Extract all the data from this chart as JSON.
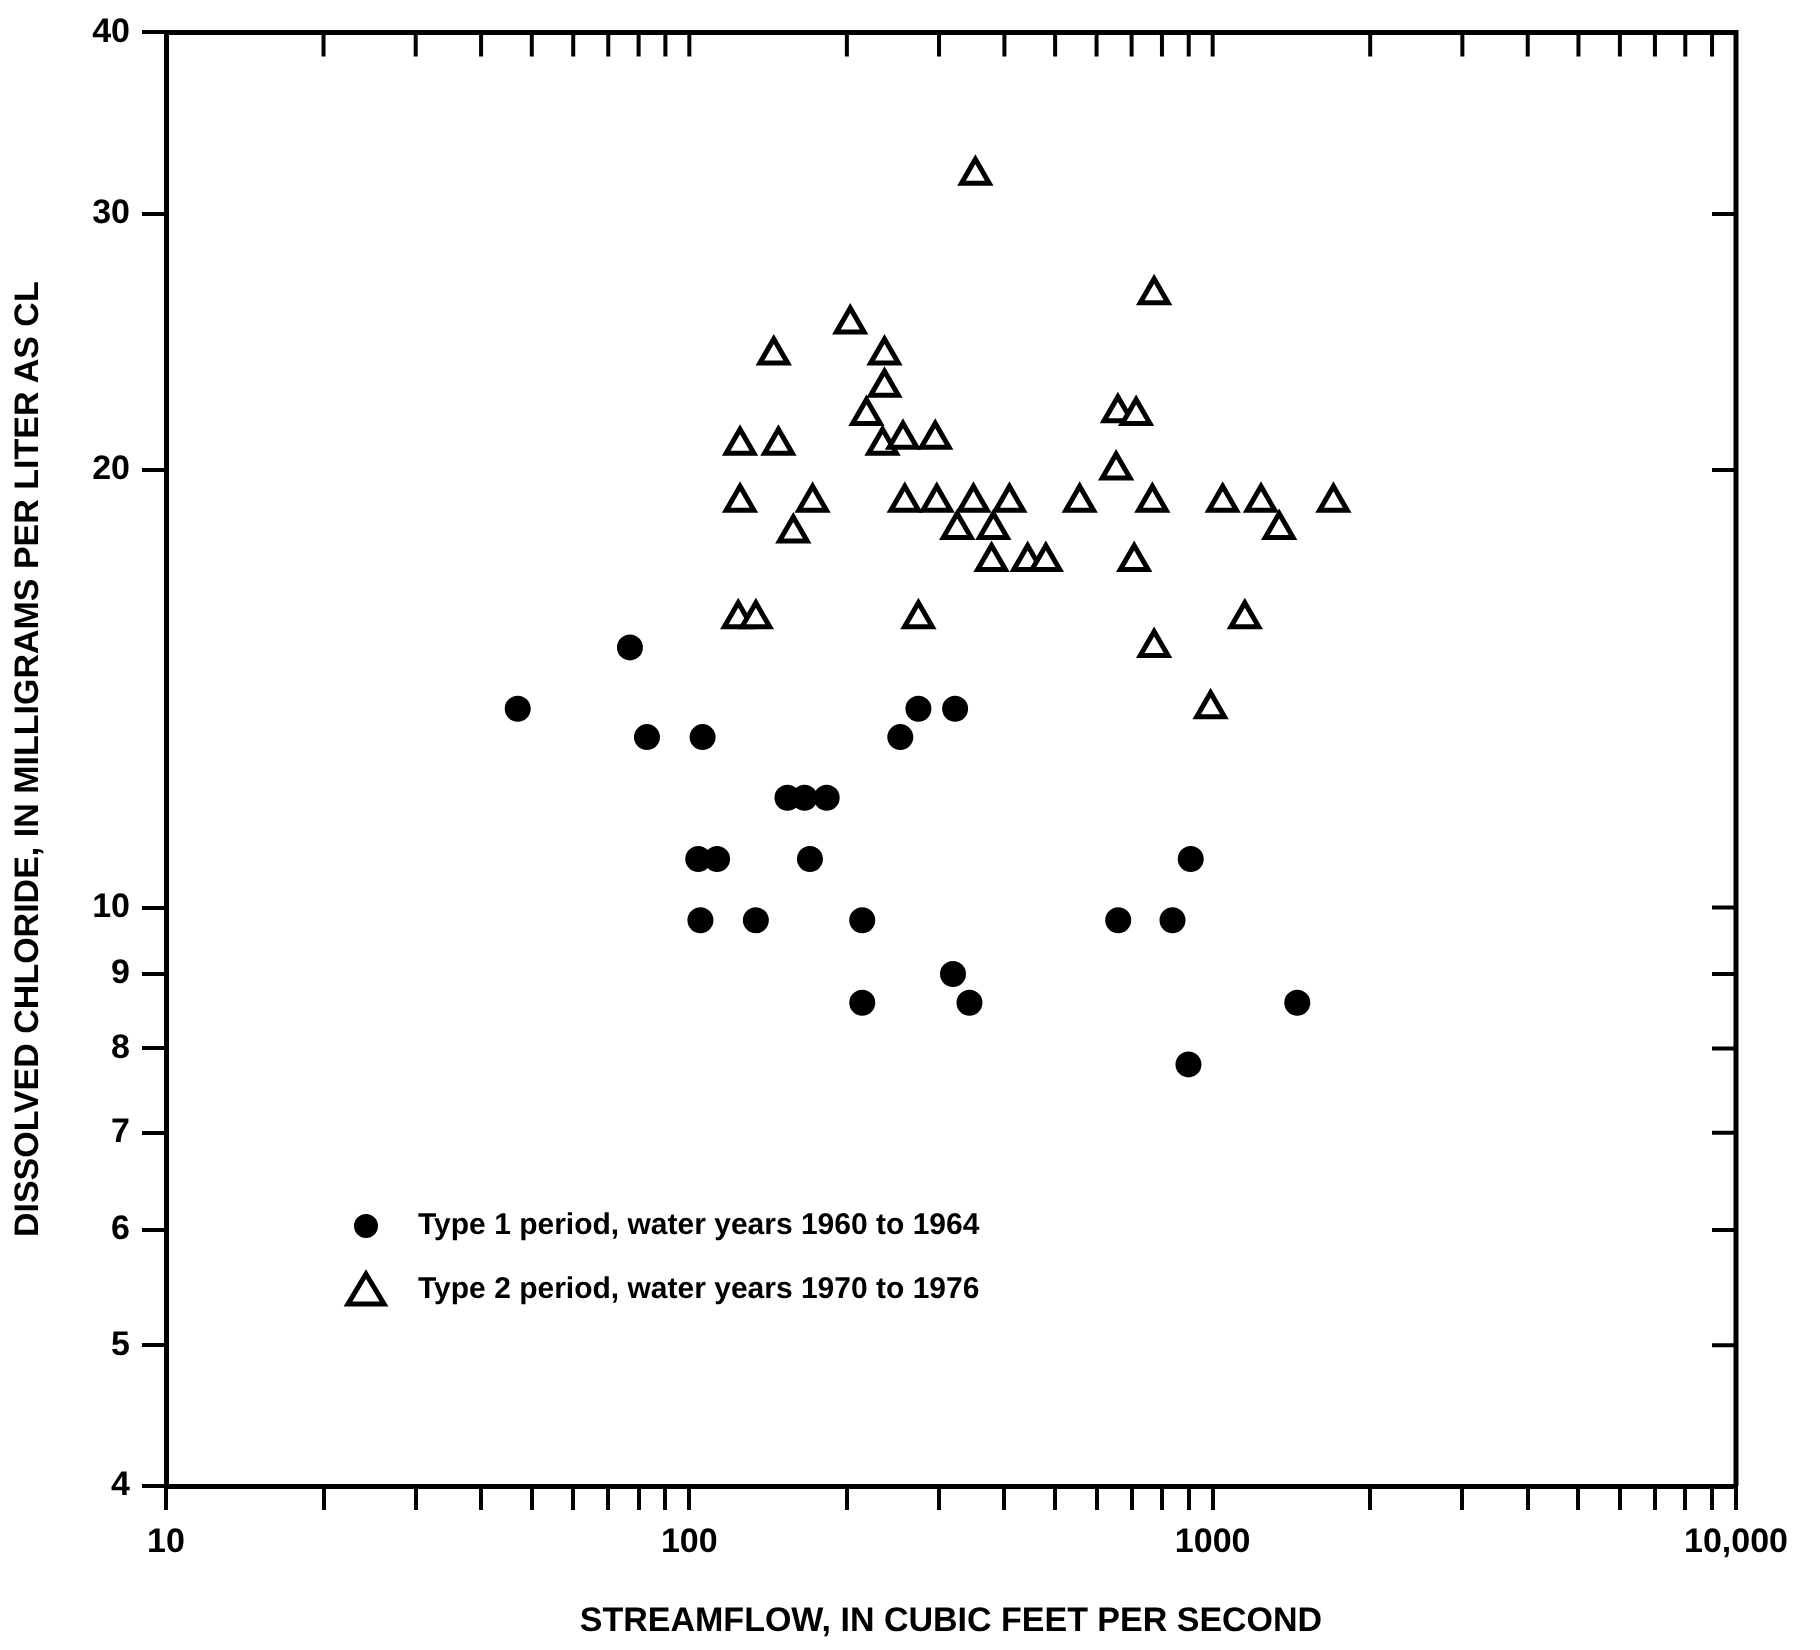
{
  "chart_data": {
    "type": "scatter",
    "xlabel": "STREAMFLOW, IN CUBIC FEET PER SECOND",
    "ylabel": "DISSOLVED CHLORIDE, IN MILLIGRAMS PER LITER AS CL",
    "log": "xy",
    "grid": false,
    "legend": "bottom left",
    "xlim": [
      10,
      10000
    ],
    "ylim": [
      4,
      40
    ],
    "xticks": [
      10,
      {
        "value": 20,
        "label": null
      },
      {
        "value": 30,
        "label": null
      },
      {
        "value": 40,
        "label": null
      },
      {
        "value": 50,
        "label": null
      },
      {
        "value": 60,
        "label": null
      },
      {
        "value": 70,
        "label": null
      },
      {
        "value": 80,
        "label": null
      },
      {
        "value": 90,
        "label": null
      },
      100,
      {
        "value": 200,
        "label": null
      },
      {
        "value": 300,
        "label": null
      },
      {
        "value": 400,
        "label": null
      },
      {
        "value": 500,
        "label": null
      },
      {
        "value": 600,
        "label": null
      },
      {
        "value": 700,
        "label": null
      },
      {
        "value": 800,
        "label": null
      },
      {
        "value": 900,
        "label": null
      },
      1000,
      {
        "value": 2000,
        "label": null
      },
      {
        "value": 3000,
        "label": null
      },
      {
        "value": 4000,
        "label": null
      },
      {
        "value": 5000,
        "label": null
      },
      {
        "value": 6000,
        "label": null
      },
      {
        "value": 7000,
        "label": null
      },
      {
        "value": 8000,
        "label": null
      },
      {
        "value": 9000,
        "label": null
      },
      {
        "value": 10000,
        "label": "10,000"
      }
    ],
    "yticks": [
      4,
      5,
      6,
      7,
      8,
      9,
      10,
      20,
      30,
      40
    ],
    "series": [
      {
        "name": "Type 1 period, water years 1960 to 1964",
        "color": "#000000",
        "marker": "circle",
        "x": [
          77,
          47,
          83,
          106,
          274,
          322,
          253,
          154,
          166,
          183,
          104,
          113,
          170,
          908,
          105,
          134,
          214,
          660,
          838,
          319,
          214,
          343,
          1451,
          899
        ],
        "values": [
          15.1,
          13.7,
          13.1,
          13.1,
          13.7,
          13.7,
          13.1,
          11.9,
          11.9,
          11.9,
          10.8,
          10.8,
          10.8,
          10.8,
          9.8,
          9.8,
          9.8,
          9.8,
          9.8,
          9.0,
          8.6,
          8.6,
          8.6,
          7.8
        ]
      },
      {
        "name": "Type 2 period, water years 1970 to 1976",
        "color": "#000000",
        "marker": "triangle",
        "x": [
          352,
          203,
          145,
          236,
          236,
          218,
          125,
          148,
          234,
          256,
          295,
          125,
          172,
          158,
          258,
          297,
          349,
          409,
          557,
          325,
          381,
          378,
          443,
          480,
          124,
          134,
          274,
          773,
          659,
          714,
          654,
          767,
          1045,
          1237,
          1701,
          1340,
          708,
          1152,
          773,
          991
        ],
        "values": [
          31.9,
          25.2,
          24.0,
          24.0,
          22.8,
          21.8,
          20.8,
          20.8,
          20.8,
          21.0,
          21.0,
          19.0,
          19.0,
          18.1,
          19.0,
          19.0,
          19.0,
          19.0,
          19.0,
          18.2,
          18.2,
          17.3,
          17.3,
          17.3,
          15.8,
          15.8,
          15.8,
          26.4,
          21.9,
          21.8,
          20.0,
          19.0,
          19.0,
          19.0,
          19.0,
          18.2,
          17.3,
          15.8,
          15.1,
          13.7
        ]
      }
    ]
  }
}
